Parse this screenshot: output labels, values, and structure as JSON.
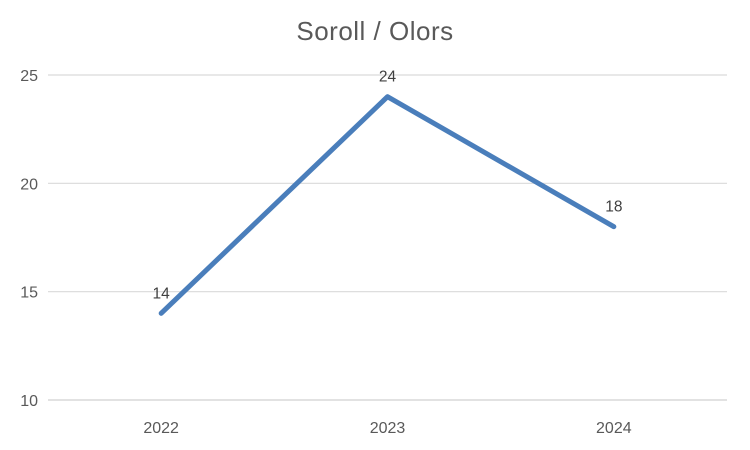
{
  "chart_data": {
    "type": "line",
    "title": "Soroll / Olors",
    "categories": [
      "2022",
      "2023",
      "2024"
    ],
    "values": [
      14,
      24,
      18
    ],
    "data_labels": [
      "14",
      "24",
      "18"
    ],
    "y_ticks": [
      10,
      15,
      20,
      25
    ],
    "y_tick_labels": [
      "10",
      "15",
      "20",
      "25"
    ],
    "ylim": [
      10,
      25
    ],
    "grid": true,
    "legend": "none",
    "xlabel": "",
    "ylabel": "",
    "line_color": "#4A7EBB",
    "gridline_color": "#D9D9D9",
    "axis_line_color": "#D9D9D9",
    "axis_label_color": "#595959",
    "data_label_color": "#404040",
    "title_color": "#595959",
    "background_color": "#FFFFFF"
  }
}
